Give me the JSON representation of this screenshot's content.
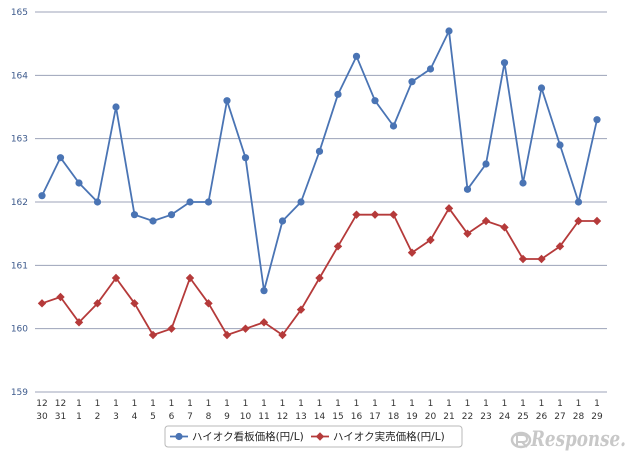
{
  "chart_data": {
    "type": "line",
    "title": "",
    "xlabel": "",
    "ylabel": "",
    "ylim": [
      159,
      165
    ],
    "yticks": [
      "159",
      "160",
      "161",
      "162",
      "163",
      "164",
      "165"
    ],
    "grid": true,
    "legend_position": "bottom",
    "categories": [
      {
        "month": "12",
        "day": "30"
      },
      {
        "month": "12",
        "day": "31"
      },
      {
        "month": "1",
        "day": "1"
      },
      {
        "month": "1",
        "day": "2"
      },
      {
        "month": "1",
        "day": "3"
      },
      {
        "month": "1",
        "day": "4"
      },
      {
        "month": "1",
        "day": "5"
      },
      {
        "month": "1",
        "day": "6"
      },
      {
        "month": "1",
        "day": "7"
      },
      {
        "month": "1",
        "day": "8"
      },
      {
        "month": "1",
        "day": "9"
      },
      {
        "month": "1",
        "day": "10"
      },
      {
        "month": "1",
        "day": "11"
      },
      {
        "month": "1",
        "day": "12"
      },
      {
        "month": "1",
        "day": "13"
      },
      {
        "month": "1",
        "day": "14"
      },
      {
        "month": "1",
        "day": "15"
      },
      {
        "month": "1",
        "day": "16"
      },
      {
        "month": "1",
        "day": "17"
      },
      {
        "month": "1",
        "day": "18"
      },
      {
        "month": "1",
        "day": "19"
      },
      {
        "month": "1",
        "day": "20"
      },
      {
        "month": "1",
        "day": "21"
      },
      {
        "month": "1",
        "day": "22"
      },
      {
        "month": "1",
        "day": "23"
      },
      {
        "month": "1",
        "day": "24"
      },
      {
        "month": "1",
        "day": "25"
      },
      {
        "month": "1",
        "day": "26"
      },
      {
        "month": "1",
        "day": "27"
      },
      {
        "month": "1",
        "day": "28"
      },
      {
        "month": "1",
        "day": "29"
      }
    ],
    "series": [
      {
        "name": "ハイオク看板価格(円/L)",
        "color": "#4a74b4",
        "marker": "circle",
        "values": [
          162.1,
          162.7,
          162.3,
          162.0,
          163.5,
          161.8,
          161.7,
          161.8,
          162.0,
          162.0,
          163.6,
          162.7,
          160.6,
          161.7,
          162.0,
          162.8,
          163.7,
          164.3,
          163.6,
          163.2,
          163.9,
          164.1,
          164.7,
          162.2,
          162.6,
          164.2,
          162.3,
          163.8,
          162.9,
          162.0,
          163.3
        ]
      },
      {
        "name": "ハイオク実売価格(円/L)",
        "color": "#b53a3a",
        "marker": "diamond",
        "values": [
          160.4,
          160.5,
          160.1,
          160.4,
          160.8,
          160.4,
          159.9,
          160.0,
          160.8,
          160.4,
          159.9,
          160.0,
          160.1,
          159.9,
          160.3,
          160.8,
          161.3,
          161.8,
          161.8,
          161.8,
          161.2,
          161.4,
          161.9,
          161.5,
          161.7,
          161.6,
          161.1,
          161.1,
          161.3,
          161.7,
          161.7
        ]
      }
    ]
  },
  "watermark": {
    "text": "Response.",
    "color": "#c8c8c8"
  }
}
